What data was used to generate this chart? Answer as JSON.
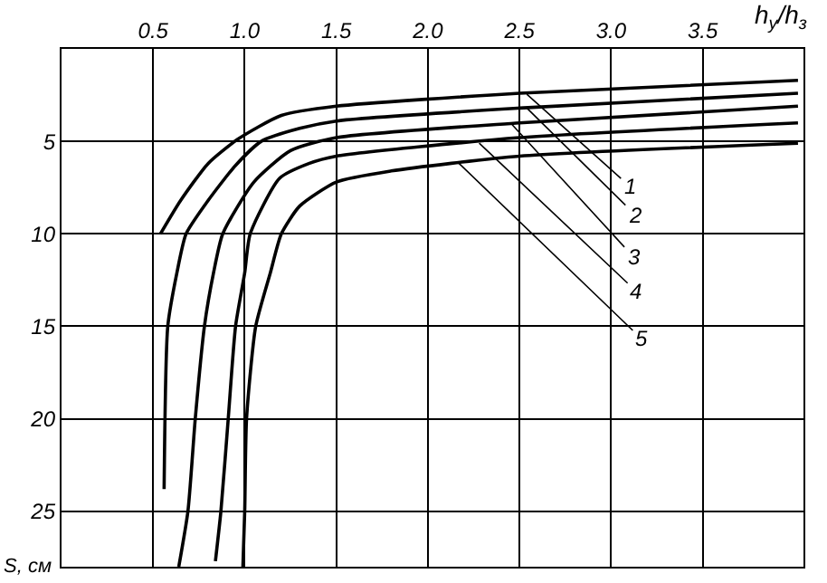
{
  "chart_data": {
    "type": "line",
    "xlabel": "h$_{у}$/h$_{з}$",
    "ylabel": "S, см",
    "xlim": [
      0,
      4.05
    ],
    "ylim": [
      28,
      0
    ],
    "xticks": [
      {
        "value": 0.5,
        "label": "0.5"
      },
      {
        "value": 1,
        "label": "1.0"
      },
      {
        "value": 1.5,
        "label": "1.5"
      },
      {
        "value": 2,
        "label": "2.0"
      },
      {
        "value": 2.5,
        "label": "2.5"
      },
      {
        "value": 3,
        "label": "3.0"
      },
      {
        "value": 3.5,
        "label": "3.5"
      }
    ],
    "yticks": [
      5,
      10,
      15,
      20,
      25
    ],
    "grid": true,
    "marker": "none",
    "line_style": "solid",
    "series": [
      {
        "color": "#000000",
        "x": [
          0.54,
          0.65,
          0.8,
          0.96,
          1.2,
          1.5,
          2.5,
          4.02
        ],
        "values": [
          10,
          8.2,
          6.2,
          4.9,
          3.6,
          3.1,
          2.4,
          1.7
        ]
      },
      {
        "color": "#000000",
        "x": [
          0.56,
          0.58,
          0.63,
          0.68,
          0.8,
          0.95,
          1.09,
          1.3,
          1.5,
          2.5,
          4.02
        ],
        "values": [
          23.8,
          15,
          12.1,
          10,
          8.2,
          6.3,
          5,
          4.3,
          3.9,
          3.2,
          2.4
        ]
      },
      {
        "color": "#000000",
        "x": [
          0.64,
          0.69,
          0.73,
          0.78,
          0.83,
          0.88,
          1.05,
          1.25,
          1.5,
          2.5,
          4.02
        ],
        "values": [
          28,
          25,
          20,
          15,
          12.1,
          10,
          7.2,
          5.5,
          4.8,
          4,
          3.1
        ]
      },
      {
        "color": "#000000",
        "x": [
          0.84,
          0.87,
          0.91,
          0.95,
          1,
          1.03,
          1.19,
          1.35,
          1.5,
          2.5,
          4.02
        ],
        "values": [
          27.7,
          25,
          20,
          15,
          12.1,
          10,
          7,
          6.2,
          5.8,
          4.8,
          4
        ]
      },
      {
        "color": "#000000",
        "x": [
          0.99,
          1,
          1.01,
          1.06,
          1.14,
          1.2,
          1.3,
          1.5,
          1.8,
          2.5,
          4.02
        ],
        "values": [
          28,
          25,
          20,
          15,
          12.1,
          10,
          8.5,
          7.2,
          6.6,
          5.8,
          5.1
        ]
      }
    ],
    "annotations": [
      {
        "text": "1",
        "x": 2.54,
        "y": 2.45
      },
      {
        "text": "2",
        "x": 2.54,
        "y": 3.2
      },
      {
        "text": "3",
        "x": 2.46,
        "y": 4.1
      },
      {
        "text": "4",
        "x": 2.28,
        "y": 5.1
      },
      {
        "text": "5",
        "x": 2.16,
        "y": 6.1
      }
    ]
  }
}
